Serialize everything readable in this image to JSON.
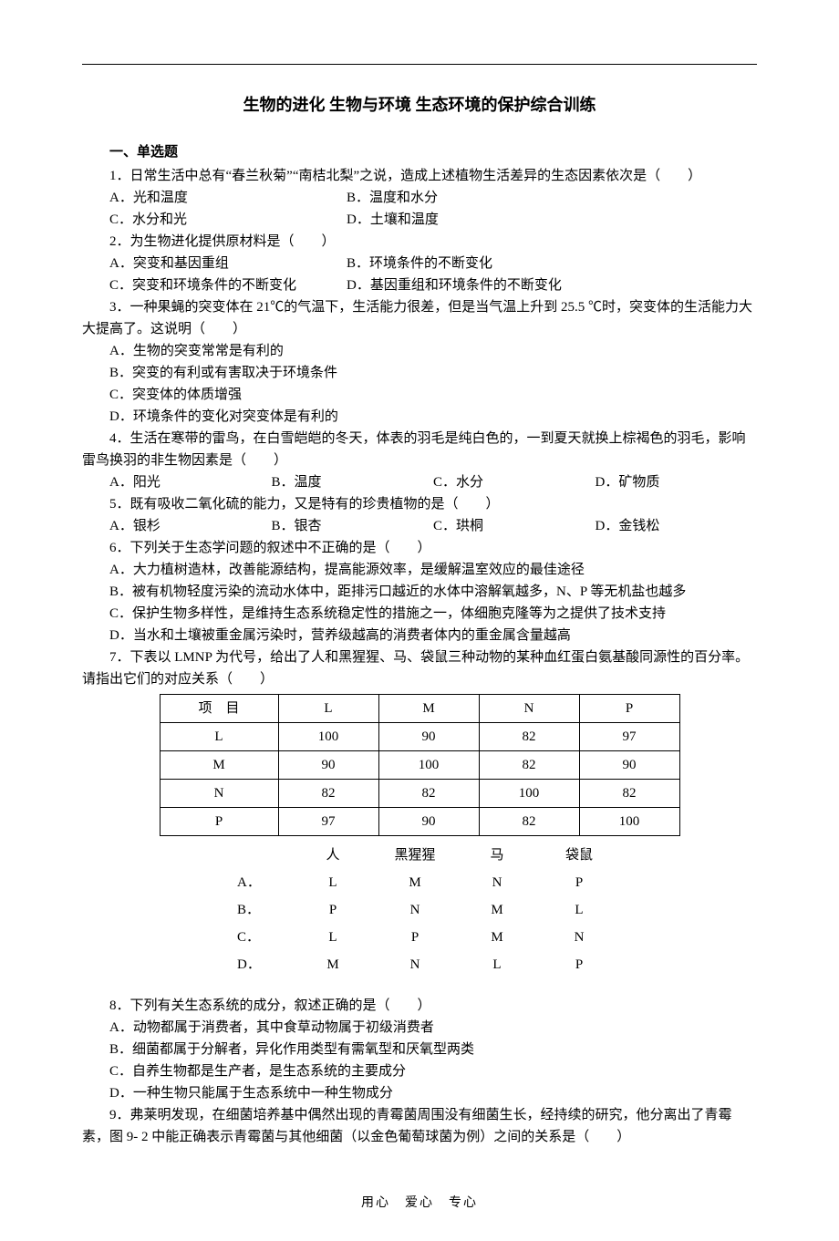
{
  "title": "生物的进化 生物与环境 生态环境的保护综合训练",
  "section1": "一、单选题",
  "q1": {
    "stem": "1．日常生活中总有“春兰秋菊”“南桔北梨”之说，造成上述植物生活差异的生态因素依次是（　　）",
    "a": "A．光和温度",
    "b": "B．温度和水分",
    "c": "C．水分和光",
    "d": "D．土壤和温度"
  },
  "q2": {
    "stem": "2．为生物进化提供原材料是（　　）",
    "a": "A．突变和基因重组",
    "b": "B．环境条件的不断变化",
    "c": "C．突变和环境条件的不断变化",
    "d": "D．基因重组和环境条件的不断变化"
  },
  "q3": {
    "stem": "3．一种果蝇的突变体在 21℃的气温下，生活能力很差，但是当气温上升到 25.5 ℃时，突变体的生活能力大大提高了。这说明（　　）",
    "a": "A．生物的突变常常是有利的",
    "b": "B．突变的有利或有害取决于环境条件",
    "c": "C．突变体的体质增强",
    "d": "D．环境条件的变化对突变体是有利的"
  },
  "q4": {
    "stem": "4．生活在寒带的雷鸟，在白雪皑皑的冬天，体表的羽毛是纯白色的，一到夏天就换上棕褐色的羽毛，影响雷鸟换羽的非生物因素是（　　）",
    "a": "A．阳光",
    "b": "B．温度",
    "c": "C．水分",
    "d": "D．矿物质"
  },
  "q5": {
    "stem": "5．既有吸收二氧化硫的能力，又是特有的珍贵植物的是（　　）",
    "a": "A．银杉",
    "b": "B．银杏",
    "c": "C．珙桐",
    "d": "D．金钱松"
  },
  "q6": {
    "stem": "6．下列关于生态学问题的叙述中不正确的是（　　）",
    "a": "A．大力植树造林，改善能源结构，提高能源效率，是缓解温室效应的最佳途径",
    "b": "B．被有机物轻度污染的流动水体中，距排污口越近的水体中溶解氧越多，N、P 等无机盐也越多",
    "c": "C．保护生物多样性，是维持生态系统稳定性的措施之一，体细胞克隆等为之提供了技术支持",
    "d": "D．当水和土壤被重金属污染时，营养级越高的消费者体内的重金属含量越高"
  },
  "q7": {
    "stem": "7．下表以 LMNP 为代号，给出了人和黑猩猩、马、袋鼠三种动物的某种血红蛋白氨基酸同源性的百分率。请指出它们的对应关系（　　）",
    "table": {
      "header": [
        "项　目",
        "L",
        "M",
        "N",
        "P"
      ],
      "rows": [
        [
          "L",
          "100",
          "90",
          "82",
          "97"
        ],
        [
          "M",
          "90",
          "100",
          "82",
          "90"
        ],
        [
          "N",
          "82",
          "82",
          "100",
          "82"
        ],
        [
          "P",
          "97",
          "90",
          "82",
          "100"
        ]
      ]
    },
    "answer_header": [
      "",
      "人",
      "黑猩猩",
      "马",
      "袋鼠"
    ],
    "answers": [
      [
        "A．",
        "L",
        "M",
        "N",
        "P"
      ],
      [
        "B．",
        "P",
        "N",
        "M",
        "L"
      ],
      [
        "C．",
        "L",
        "P",
        "M",
        "N"
      ],
      [
        "D．",
        "M",
        "N",
        "L",
        "P"
      ]
    ]
  },
  "q8": {
    "stem": "8．下列有关生态系统的成分，叙述正确的是（　　）",
    "a": "A．动物都属于消费者，其中食草动物属于初级消费者",
    "b": "B．细菌都属于分解者，异化作用类型有需氧型和厌氧型两类",
    "c": "C．自养生物都是生产者，是生态系统的主要成分",
    "d": "D．一种生物只能属于生态系统中一种生物成分"
  },
  "q9": {
    "stem": "9．弗莱明发现，在细菌培养基中偶然出现的青霉菌周围没有细菌生长，经持续的研究，他分离出了青霉素，图 9- 2 中能正确表示青霉菌与其他细菌（以金色葡萄球菌为例）之间的关系是（　　）"
  },
  "footer": "用心　爱心　专心"
}
